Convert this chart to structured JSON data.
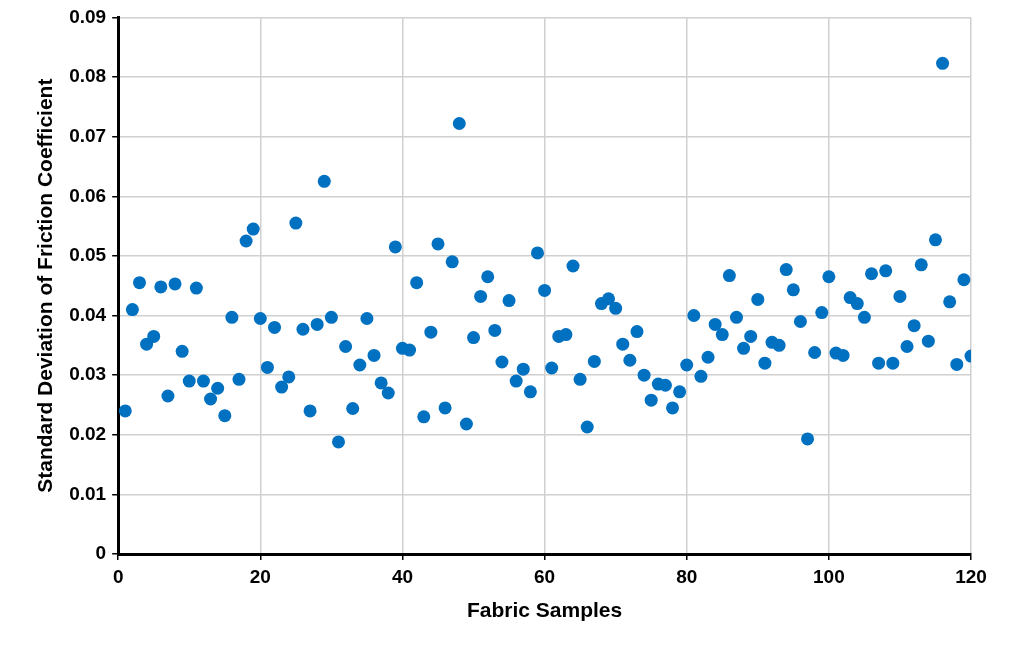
{
  "chart_data": {
    "type": "scatter",
    "xlabel": "Fabric Samples",
    "ylabel": "Standard Deviation of Friction Coefficient",
    "x": [
      1,
      2,
      3,
      4,
      5,
      6,
      7,
      8,
      9,
      10,
      11,
      12,
      13,
      14,
      15,
      16,
      17,
      18,
      19,
      20,
      21,
      22,
      23,
      24,
      25,
      26,
      27,
      28,
      29,
      30,
      31,
      32,
      33,
      34,
      35,
      36,
      37,
      38,
      39,
      40,
      41,
      42,
      43,
      44,
      45,
      46,
      47,
      48,
      49,
      50,
      51,
      52,
      53,
      54,
      55,
      56,
      57,
      58,
      59,
      60,
      61,
      62,
      63,
      64,
      65,
      66,
      67,
      68,
      69,
      70,
      71,
      72,
      73,
      74,
      75,
      76,
      77,
      78,
      79,
      80,
      81,
      82,
      83,
      84,
      85,
      86,
      87,
      88,
      89,
      90,
      91,
      92,
      93,
      94,
      95,
      96,
      97,
      98,
      99,
      100,
      101,
      102,
      103,
      104,
      105,
      106,
      107,
      108,
      109,
      110,
      111,
      112,
      113,
      114,
      115,
      116,
      117,
      118,
      119,
      120
    ],
    "series": [
      {
        "color": "#0070c0",
        "values": [
          0.024,
          0.041,
          0.0455,
          0.0352,
          0.0365,
          0.0448,
          0.0265,
          0.0453,
          0.034,
          0.029,
          0.0446,
          0.029,
          0.026,
          0.0278,
          0.0232,
          0.0397,
          0.0293,
          0.0525,
          0.0545,
          0.0395,
          0.0313,
          0.038,
          0.028,
          0.0297,
          0.0555,
          0.0377,
          0.024,
          0.0385,
          0.0625,
          0.0397,
          0.0188,
          0.0348,
          0.0244,
          0.0317,
          0.0395,
          0.0333,
          0.0287,
          0.027,
          0.0515,
          0.0345,
          0.0342,
          0.0455,
          0.023,
          0.0372,
          0.052,
          0.0245,
          0.049,
          0.0722,
          0.0218,
          0.0363,
          0.0432,
          0.0465,
          0.0375,
          0.0322,
          0.0425,
          0.029,
          0.031,
          0.0272,
          0.0505,
          0.0442,
          0.0312,
          0.0365,
          0.0368,
          0.0483,
          0.0293,
          0.0213,
          0.0323,
          0.042,
          0.0428,
          0.0412,
          0.0352,
          0.0325,
          0.0373,
          0.03,
          0.0258,
          0.0285,
          0.0283,
          0.0245,
          0.0272,
          0.0317,
          0.04,
          0.0298,
          0.033,
          0.0385,
          0.0368,
          0.0467,
          0.0397,
          0.0345,
          0.0365,
          0.0427,
          0.032,
          0.0355,
          0.035,
          0.0477,
          0.0443,
          0.039,
          0.0193,
          0.0338,
          0.0405,
          0.0465,
          0.0337,
          0.0333,
          0.043,
          0.042,
          0.0397,
          0.047,
          0.032,
          0.0475,
          0.032,
          0.0432,
          0.0348,
          0.0383,
          0.0485,
          0.0357,
          0.0527,
          0.0823,
          0.0423,
          0.0318,
          0.046,
          0.0332
        ]
      }
    ],
    "xlim": [
      0,
      120
    ],
    "xticks": [
      0,
      20,
      40,
      60,
      80,
      100,
      120
    ],
    "ylim": [
      0,
      0.09
    ],
    "yticks": [
      0,
      0.01,
      0.02,
      0.03,
      0.04,
      0.05,
      0.06,
      0.07,
      0.08,
      0.09
    ],
    "grid": true,
    "legend": false,
    "marker": "circle"
  }
}
